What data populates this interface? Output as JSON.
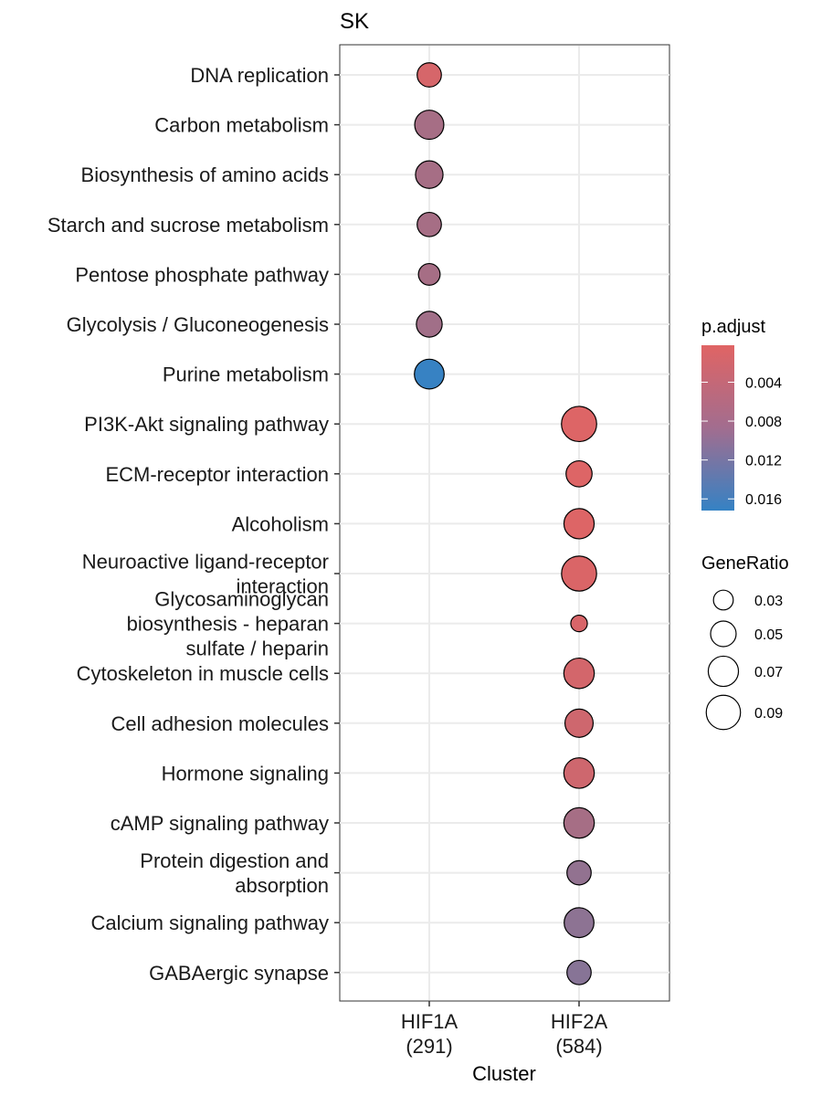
{
  "chart_data": {
    "type": "scatter",
    "title": "SK",
    "xlabel": "Cluster",
    "ylabel": "",
    "x_categories": [
      {
        "name": "HIF1A",
        "count": "(291)"
      },
      {
        "name": "HIF2A",
        "count": "(584)"
      }
    ],
    "y_categories": [
      [
        "DNA replication"
      ],
      [
        "Carbon metabolism"
      ],
      [
        "Biosynthesis of amino acids"
      ],
      [
        "Starch and sucrose metabolism"
      ],
      [
        "Pentose phosphate pathway"
      ],
      [
        "Glycolysis / Gluconeogenesis"
      ],
      [
        "Purine metabolism"
      ],
      [
        "PI3K-Akt signaling pathway"
      ],
      [
        "ECM-receptor interaction"
      ],
      [
        "Alcoholism"
      ],
      [
        "Neuroactive ligand-receptor",
        "interaction"
      ],
      [
        "Glycosaminoglycan",
        "biosynthesis - heparan",
        "sulfate / heparin"
      ],
      [
        "Cytoskeleton in muscle cells"
      ],
      [
        "Cell adhesion molecules"
      ],
      [
        "Hormone signaling"
      ],
      [
        "cAMP signaling pathway"
      ],
      [
        "Protein digestion and",
        "absorption"
      ],
      [
        "Calcium signaling pathway"
      ],
      [
        "GABAergic synapse"
      ]
    ],
    "points": [
      {
        "cluster": "HIF1A",
        "term": 0,
        "gene_ratio": 0.045,
        "p_adjust": 0.0012
      },
      {
        "cluster": "HIF1A",
        "term": 1,
        "gene_ratio": 0.065,
        "p_adjust": 0.006
      },
      {
        "cluster": "HIF1A",
        "term": 2,
        "gene_ratio": 0.058,
        "p_adjust": 0.006
      },
      {
        "cluster": "HIF1A",
        "term": 3,
        "gene_ratio": 0.045,
        "p_adjust": 0.006
      },
      {
        "cluster": "HIF1A",
        "term": 4,
        "gene_ratio": 0.036,
        "p_adjust": 0.006
      },
      {
        "cluster": "HIF1A",
        "term": 5,
        "gene_ratio": 0.051,
        "p_adjust": 0.0065
      },
      {
        "cluster": "HIF1A",
        "term": 6,
        "gene_ratio": 0.068,
        "p_adjust": 0.017
      },
      {
        "cluster": "HIF2A",
        "term": 7,
        "gene_ratio": 0.095,
        "p_adjust": 0.0005
      },
      {
        "cluster": "HIF2A",
        "term": 8,
        "gene_ratio": 0.052,
        "p_adjust": 0.0005
      },
      {
        "cluster": "HIF2A",
        "term": 9,
        "gene_ratio": 0.07,
        "p_adjust": 0.0005
      },
      {
        "cluster": "HIF2A",
        "term": 10,
        "gene_ratio": 0.094,
        "p_adjust": 0.0008
      },
      {
        "cluster": "HIF2A",
        "term": 11,
        "gene_ratio": 0.021,
        "p_adjust": 0.001
      },
      {
        "cluster": "HIF2A",
        "term": 12,
        "gene_ratio": 0.071,
        "p_adjust": 0.0015
      },
      {
        "cluster": "HIF2A",
        "term": 13,
        "gene_ratio": 0.061,
        "p_adjust": 0.002
      },
      {
        "cluster": "HIF2A",
        "term": 14,
        "gene_ratio": 0.071,
        "p_adjust": 0.002
      },
      {
        "cluster": "HIF2A",
        "term": 15,
        "gene_ratio": 0.071,
        "p_adjust": 0.006
      },
      {
        "cluster": "HIF2A",
        "term": 16,
        "gene_ratio": 0.045,
        "p_adjust": 0.008
      },
      {
        "cluster": "HIF2A",
        "term": 17,
        "gene_ratio": 0.068,
        "p_adjust": 0.0085
      },
      {
        "cluster": "HIF2A",
        "term": 18,
        "gene_ratio": 0.045,
        "p_adjust": 0.009
      }
    ],
    "color_legend": {
      "title": "p.adjust",
      "ticks": [
        0.004,
        0.008,
        0.012,
        0.016
      ],
      "tick_labels": [
        "0.004",
        "0.008",
        "0.012",
        "0.016"
      ],
      "range": [
        0.0002,
        0.0172
      ],
      "low_color": "#E06464",
      "high_color": "#3582C4"
    },
    "size_legend": {
      "title": "GeneRatio",
      "values": [
        0.03,
        0.05,
        0.07,
        0.09
      ],
      "labels": [
        "0.03",
        "0.05",
        "0.07",
        "0.09"
      ]
    },
    "grid": true,
    "legend_position": "right"
  }
}
